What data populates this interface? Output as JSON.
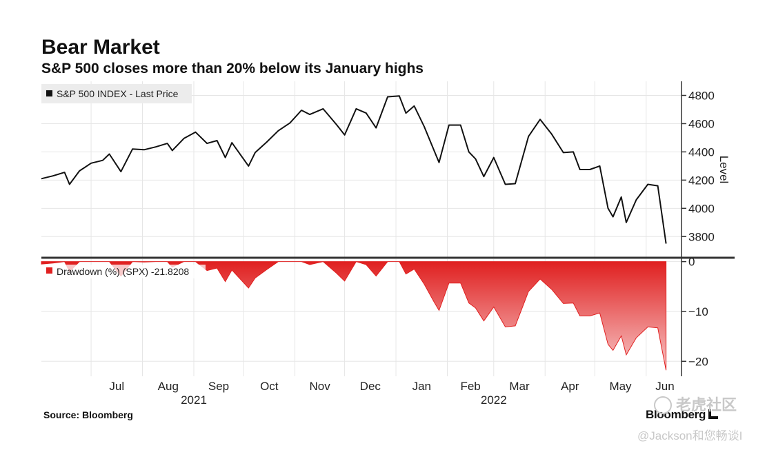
{
  "header": {
    "title": "Bear Market",
    "subtitle": "S&P 500 closes more than 20% below its January highs"
  },
  "footer": {
    "source": "Source: Bloomberg",
    "brand": "Bloomberg",
    "watermark_logo": "老虎社区",
    "watermark_author": "@Jackson和您畅谈I"
  },
  "colors": {
    "price_line": "#111111",
    "drawdown_fill": "#e02020",
    "drawdown_fill_light": "#f7c7c7",
    "grid": "#e6e6e6"
  },
  "chart_data": [
    {
      "type": "line",
      "panel": "top",
      "legend": "S&P 500 INDEX - Last Price",
      "ylabel": "Level",
      "ylim": [
        3650,
        4900
      ],
      "yticks": [
        3800,
        4000,
        4200,
        4400,
        4600,
        4800
      ],
      "x_range": [
        "2021-06-01",
        "2022-06-14"
      ],
      "series": [
        {
          "name": "S&P 500 INDEX - Last Price",
          "x": [
            "2021-06-01",
            "2021-06-08",
            "2021-06-15",
            "2021-06-18",
            "2021-06-24",
            "2021-07-01",
            "2021-07-08",
            "2021-07-12",
            "2021-07-19",
            "2021-07-26",
            "2021-08-02",
            "2021-08-09",
            "2021-08-16",
            "2021-08-19",
            "2021-08-26",
            "2021-09-02",
            "2021-09-09",
            "2021-09-15",
            "2021-09-20",
            "2021-09-24",
            "2021-10-04",
            "2021-10-08",
            "2021-10-15",
            "2021-10-22",
            "2021-10-29",
            "2021-11-05",
            "2021-11-10",
            "2021-11-18",
            "2021-11-26",
            "2021-12-01",
            "2021-12-08",
            "2021-12-14",
            "2021-12-20",
            "2021-12-27",
            "2022-01-03",
            "2022-01-07",
            "2022-01-12",
            "2022-01-18",
            "2022-01-24",
            "2022-01-27",
            "2022-02-02",
            "2022-02-09",
            "2022-02-14",
            "2022-02-18",
            "2022-02-23",
            "2022-03-01",
            "2022-03-08",
            "2022-03-14",
            "2022-03-22",
            "2022-03-29",
            "2022-04-05",
            "2022-04-12",
            "2022-04-18",
            "2022-04-22",
            "2022-04-28",
            "2022-05-04",
            "2022-05-09",
            "2022-05-12",
            "2022-05-17",
            "2022-05-20",
            "2022-05-26",
            "2022-06-02",
            "2022-06-08",
            "2022-06-13"
          ],
          "y": [
            4210,
            4230,
            4255,
            4170,
            4265,
            4320,
            4340,
            4385,
            4260,
            4420,
            4415,
            4435,
            4460,
            4410,
            4495,
            4540,
            4460,
            4480,
            4360,
            4465,
            4300,
            4395,
            4470,
            4550,
            4605,
            4695,
            4665,
            4705,
            4595,
            4520,
            4705,
            4675,
            4570,
            4790,
            4796,
            4675,
            4725,
            4580,
            4410,
            4325,
            4590,
            4590,
            4400,
            4350,
            4225,
            4360,
            4170,
            4175,
            4510,
            4630,
            4525,
            4395,
            4400,
            4275,
            4275,
            4300,
            4000,
            3940,
            4080,
            3900,
            4060,
            4170,
            4160,
            3750
          ]
        }
      ]
    },
    {
      "type": "area",
      "panel": "bottom",
      "legend": "Drawdown (%) (SPX) -21.8208",
      "ylim": [
        -23,
        0.5
      ],
      "yticks": [
        0,
        -10,
        -20
      ],
      "x_range": [
        "2021-06-01",
        "2022-06-14"
      ],
      "series": [
        {
          "name": "Drawdown (%) (SPX) -21.8208",
          "x": [
            "2021-06-01",
            "2021-06-08",
            "2021-06-15",
            "2021-06-18",
            "2021-06-24",
            "2021-07-01",
            "2021-07-08",
            "2021-07-12",
            "2021-07-19",
            "2021-07-26",
            "2021-08-02",
            "2021-08-09",
            "2021-08-16",
            "2021-08-19",
            "2021-08-26",
            "2021-09-02",
            "2021-09-09",
            "2021-09-15",
            "2021-09-20",
            "2021-09-24",
            "2021-10-04",
            "2021-10-08",
            "2021-10-15",
            "2021-10-22",
            "2021-10-29",
            "2021-11-05",
            "2021-11-10",
            "2021-11-18",
            "2021-11-26",
            "2021-12-01",
            "2021-12-08",
            "2021-12-14",
            "2021-12-20",
            "2021-12-27",
            "2022-01-03",
            "2022-01-07",
            "2022-01-12",
            "2022-01-18",
            "2022-01-24",
            "2022-01-27",
            "2022-02-02",
            "2022-02-09",
            "2022-02-14",
            "2022-02-18",
            "2022-02-23",
            "2022-03-01",
            "2022-03-08",
            "2022-03-14",
            "2022-03-22",
            "2022-03-29",
            "2022-04-05",
            "2022-04-12",
            "2022-04-18",
            "2022-04-22",
            "2022-04-28",
            "2022-05-04",
            "2022-05-09",
            "2022-05-12",
            "2022-05-17",
            "2022-05-20",
            "2022-05-26",
            "2022-06-02",
            "2022-06-08",
            "2022-06-13"
          ],
          "y": [
            -0.5,
            -0.3,
            0,
            -2.0,
            0,
            0,
            0,
            0,
            -2.9,
            0,
            -0.1,
            0,
            0,
            -1.1,
            0,
            0,
            -1.8,
            -1.3,
            -4.0,
            -1.7,
            -5.3,
            -3.3,
            -1.6,
            0,
            0,
            0,
            -0.6,
            0,
            -2.3,
            -3.9,
            0,
            -0.6,
            -2.9,
            0,
            0,
            -2.5,
            -1.5,
            -4.5,
            -8.1,
            -9.8,
            -4.3,
            -4.3,
            -8.3,
            -9.3,
            -11.9,
            -9.1,
            -13.1,
            -12.9,
            -6.0,
            -3.5,
            -5.6,
            -8.4,
            -8.3,
            -10.9,
            -10.9,
            -10.3,
            -16.6,
            -17.8,
            -14.9,
            -18.7,
            -15.3,
            -13.1,
            -13.3,
            -21.8
          ]
        }
      ]
    }
  ],
  "axis": {
    "months": [
      {
        "label": "Jul",
        "date": "2021-07-01"
      },
      {
        "label": "Aug",
        "date": "2021-08-01"
      },
      {
        "label": "Sep",
        "date": "2021-09-01"
      },
      {
        "label": "Oct",
        "date": "2021-10-01"
      },
      {
        "label": "Nov",
        "date": "2021-11-01"
      },
      {
        "label": "Dec",
        "date": "2021-12-01"
      },
      {
        "label": "Jan",
        "date": "2022-01-01"
      },
      {
        "label": "Feb",
        "date": "2022-02-01"
      },
      {
        "label": "Mar",
        "date": "2022-03-01"
      },
      {
        "label": "Apr",
        "date": "2022-04-01"
      },
      {
        "label": "May",
        "date": "2022-05-01"
      },
      {
        "label": "Jun",
        "date": "2022-06-01"
      }
    ],
    "years": [
      {
        "label": "2021",
        "date": "2021-09-01"
      },
      {
        "label": "2022",
        "date": "2022-03-01"
      }
    ]
  }
}
